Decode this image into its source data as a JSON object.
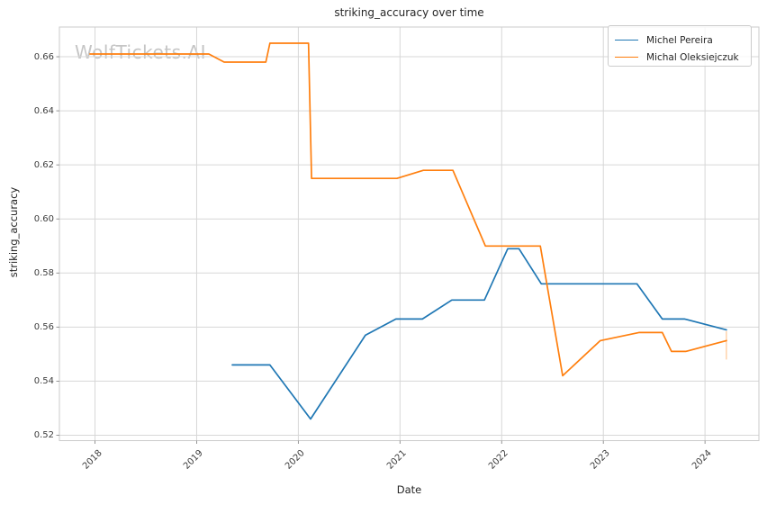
{
  "figure": {
    "background": "#ffffff",
    "grid_color": "#d7d7d7",
    "spine_color": "#cbcbcb",
    "tick_color": "#8a8a8a",
    "text_color": "#262626"
  },
  "watermark": {
    "text": "WolfTickets.AI",
    "color": "rgba(150,150,150,0.55)"
  },
  "chart_data": {
    "type": "line",
    "title": "striking_accuracy over time",
    "xlabel": "Date",
    "ylabel": "striking_accuracy",
    "x_unit": "decimal_year",
    "xlim": [
      2017.65,
      2024.53
    ],
    "ylim": [
      0.518,
      0.671
    ],
    "x_ticks": [
      2018,
      2019,
      2020,
      2021,
      2022,
      2023,
      2024
    ],
    "x_tick_labels": [
      "2018",
      "2019",
      "2020",
      "2021",
      "2022",
      "2023",
      "2024"
    ],
    "y_ticks": [
      0.52,
      0.54,
      0.56,
      0.58,
      0.6,
      0.62,
      0.64,
      0.66
    ],
    "y_tick_labels": [
      "0.52",
      "0.54",
      "0.56",
      "0.58",
      "0.60",
      "0.62",
      "0.64",
      "0.66"
    ],
    "grid": true,
    "legend_position": "upper right",
    "series": [
      {
        "name": "Michel Pereira",
        "color": "#1f77b4",
        "points": [
          [
            2019.35,
            0.546
          ],
          [
            2019.72,
            0.546
          ],
          [
            2020.12,
            0.526
          ],
          [
            2020.66,
            0.557
          ],
          [
            2020.96,
            0.563
          ],
          [
            2021.22,
            0.563
          ],
          [
            2021.51,
            0.57
          ],
          [
            2021.83,
            0.57
          ],
          [
            2022.06,
            0.589
          ],
          [
            2022.17,
            0.589
          ],
          [
            2022.39,
            0.576
          ],
          [
            2023.33,
            0.576
          ],
          [
            2023.58,
            0.563
          ],
          [
            2023.8,
            0.563
          ],
          [
            2024.21,
            0.559
          ]
        ]
      },
      {
        "name": "Michal Oleksiejczuk",
        "color": "#ff7f0e",
        "points": [
          [
            2017.95,
            0.661
          ],
          [
            2019.12,
            0.661
          ],
          [
            2019.27,
            0.658
          ],
          [
            2019.68,
            0.658
          ],
          [
            2019.72,
            0.665
          ],
          [
            2020.1,
            0.665
          ],
          [
            2020.13,
            0.615
          ],
          [
            2020.97,
            0.615
          ],
          [
            2021.23,
            0.618
          ],
          [
            2021.52,
            0.618
          ],
          [
            2021.84,
            0.59
          ],
          [
            2022.38,
            0.59
          ],
          [
            2022.6,
            0.542
          ],
          [
            2022.97,
            0.555
          ],
          [
            2023.35,
            0.558
          ],
          [
            2023.58,
            0.558
          ],
          [
            2023.67,
            0.551
          ],
          [
            2023.81,
            0.551
          ],
          [
            2024.21,
            0.555
          ]
        ],
        "end_marker": {
          "x": 2024.21,
          "y_from": 0.5585,
          "y_to": 0.548,
          "opacity": 0.35
        }
      }
    ]
  }
}
